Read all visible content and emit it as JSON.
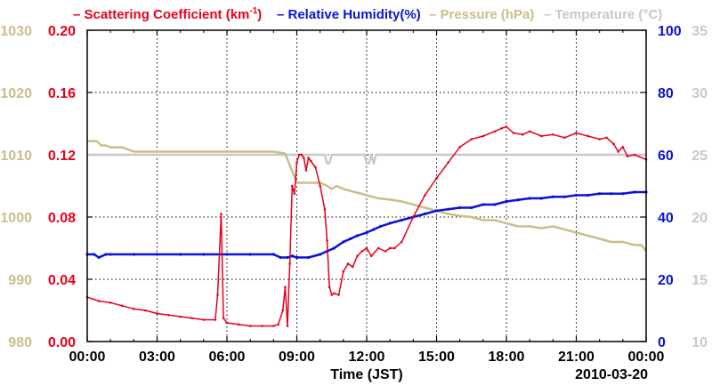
{
  "chart_data": {
    "type": "line",
    "title": "",
    "date_label": "2010-03-20",
    "xlabel": "Time (JST)",
    "x_ticks": [
      "00:00",
      "03:00",
      "06:00",
      "09:00",
      "12:00",
      "15:00",
      "18:00",
      "21:00",
      "00:00"
    ],
    "xlim_hours": [
      0,
      24
    ],
    "colors": {
      "scattering": "#e8001a",
      "humidity": "#0a14d8",
      "pressure": "#c8bf8a",
      "temperature": "#c8c8c8",
      "grid": "#000000"
    },
    "legend": {
      "scattering_prefix": "– Scattering Coefficient (km",
      "scattering_sup": "-1",
      "scattering_suffix": ")",
      "humidity": "– Relative Humidity(%)",
      "pressure": "– Pressure (hPa)",
      "temperature": "– Temperature (°C)"
    },
    "axes": {
      "scattering": {
        "ylim": [
          0,
          0.2
        ],
        "ticks": [
          "0.00",
          "0.04",
          "0.08",
          "0.12",
          "0.16",
          "0.20"
        ]
      },
      "pressure": {
        "ylim": [
          980,
          1030
        ],
        "ticks": [
          "980",
          "990",
          "1000",
          "1010",
          "1020",
          "1030"
        ]
      },
      "humidity": {
        "ylim": [
          0,
          100
        ],
        "ticks": [
          "0",
          "20",
          "40",
          "60",
          "80",
          "100"
        ]
      },
      "temperature": {
        "ylim": [
          10,
          35
        ],
        "ticks": [
          "10",
          "15",
          "20",
          "25",
          "30",
          "35"
        ]
      }
    },
    "series": [
      {
        "name": "Scattering Coefficient",
        "axis": "scattering",
        "x": [
          0,
          0.5,
          1,
          1.5,
          2,
          2.5,
          3,
          3.5,
          4,
          4.5,
          5,
          5.5,
          5.6,
          5.75,
          5.85,
          6,
          6.5,
          7,
          7.5,
          8,
          8.2,
          8.4,
          8.5,
          8.6,
          8.7,
          8.8,
          8.9,
          9.0,
          9.1,
          9.2,
          9.3,
          9.4,
          9.5,
          9.6,
          9.8,
          10.0,
          10.2,
          10.3,
          10.4,
          10.5,
          10.6,
          10.8,
          11.0,
          11.2,
          11.4,
          11.6,
          11.8,
          12.0,
          12.2,
          12.5,
          12.8,
          13.0,
          13.2,
          13.5,
          14.0,
          14.5,
          15.0,
          15.5,
          16.0,
          16.5,
          17.0,
          17.5,
          17.8,
          18.0,
          18.3,
          18.7,
          19.0,
          19.5,
          20.0,
          20.5,
          21.0,
          21.5,
          22.0,
          22.3,
          22.6,
          22.8,
          23.0,
          23.2,
          23.5,
          24.0
        ],
        "values": [
          0.0285,
          0.026,
          0.025,
          0.023,
          0.021,
          0.02,
          0.018,
          0.017,
          0.016,
          0.015,
          0.014,
          0.014,
          0.03,
          0.082,
          0.015,
          0.012,
          0.011,
          0.01,
          0.01,
          0.01,
          0.011,
          0.02,
          0.035,
          0.01,
          0.05,
          0.1,
          0.095,
          0.115,
          0.12,
          0.12,
          0.118,
          0.11,
          0.118,
          0.116,
          0.112,
          0.1,
          0.085,
          0.065,
          0.035,
          0.03,
          0.031,
          0.03,
          0.045,
          0.05,
          0.048,
          0.055,
          0.058,
          0.06,
          0.055,
          0.06,
          0.058,
          0.06,
          0.06,
          0.064,
          0.08,
          0.094,
          0.105,
          0.115,
          0.125,
          0.13,
          0.132,
          0.135,
          0.137,
          0.138,
          0.134,
          0.133,
          0.135,
          0.132,
          0.133,
          0.131,
          0.134,
          0.132,
          0.13,
          0.131,
          0.127,
          0.122,
          0.125,
          0.119,
          0.12,
          0.117
        ]
      },
      {
        "name": "Relative Humidity",
        "axis": "humidity",
        "x": [
          0,
          0.3,
          0.5,
          0.8,
          1.0,
          2.0,
          3.0,
          4.0,
          5.0,
          6.0,
          7.0,
          8.0,
          8.3,
          8.6,
          8.8,
          9.0,
          9.5,
          10.0,
          10.3,
          10.6,
          11.0,
          11.3,
          11.6,
          12.0,
          12.3,
          12.6,
          13.0,
          13.5,
          14.0,
          14.5,
          15.0,
          15.5,
          16.0,
          16.5,
          17.0,
          17.5,
          18.0,
          18.5,
          19.0,
          19.5,
          20.0,
          20.5,
          21.0,
          21.5,
          22.0,
          22.5,
          23.0,
          23.5,
          24.0
        ],
        "values": [
          28,
          28,
          27,
          28,
          28,
          28,
          28,
          28,
          28,
          28,
          28,
          28,
          27,
          27,
          27.5,
          27,
          27,
          28,
          29,
          30,
          32,
          33,
          34,
          35,
          36,
          37,
          38,
          39,
          40,
          41,
          42,
          42.5,
          43,
          43,
          44,
          44,
          45,
          45.5,
          46,
          46,
          46.5,
          46.5,
          47,
          47,
          47.5,
          47.5,
          47.5,
          48,
          48
        ]
      },
      {
        "name": "Pressure",
        "axis": "pressure",
        "x": [
          0,
          0.4,
          0.6,
          0.8,
          1.0,
          1.5,
          2.0,
          2.5,
          3.0,
          4.0,
          5.0,
          6.0,
          7.0,
          8.0,
          8.5,
          9.0,
          9.5,
          10.0,
          10.3,
          10.5,
          10.7,
          11.0,
          11.5,
          12.0,
          12.5,
          13.0,
          13.5,
          14.0,
          14.5,
          15.0,
          15.5,
          16.0,
          16.5,
          17.0,
          17.5,
          18.0,
          18.5,
          19.0,
          19.5,
          20.0,
          20.5,
          21.0,
          21.5,
          22.0,
          22.5,
          23.0,
          23.5,
          23.8,
          24.0
        ],
        "values": [
          1012.2,
          1012.2,
          1011.5,
          1011.5,
          1011.2,
          1011.2,
          1010.5,
          1010.5,
          1010.5,
          1010.5,
          1010.5,
          1010.5,
          1010.5,
          1010.5,
          1010.2,
          1005.5,
          1005.5,
          1005.5,
          1005.0,
          1004.5,
          1005.0,
          1004.5,
          1004.0,
          1003.5,
          1003.0,
          1002.8,
          1002.5,
          1002.0,
          1001.5,
          1001.0,
          1000.5,
          1000.2,
          1000.0,
          999.5,
          999.5,
          999.0,
          998.5,
          998.5,
          998.2,
          998.5,
          998.0,
          997.5,
          997.0,
          996.5,
          996.0,
          996.0,
          995.5,
          995.5,
          994.5
        ]
      },
      {
        "name": "Temperature",
        "axis": "temperature",
        "x": [
          0,
          9.0,
          10.2,
          10.3,
          10.4,
          10.5,
          11.0,
          11.9,
          12.0,
          12.1,
          12.2,
          12.3,
          12.4,
          24.0
        ],
        "values": [
          25,
          25,
          25,
          24.3,
          24.3,
          25,
          25,
          25,
          24.3,
          24.3,
          25,
          24.3,
          25,
          25
        ]
      }
    ]
  }
}
